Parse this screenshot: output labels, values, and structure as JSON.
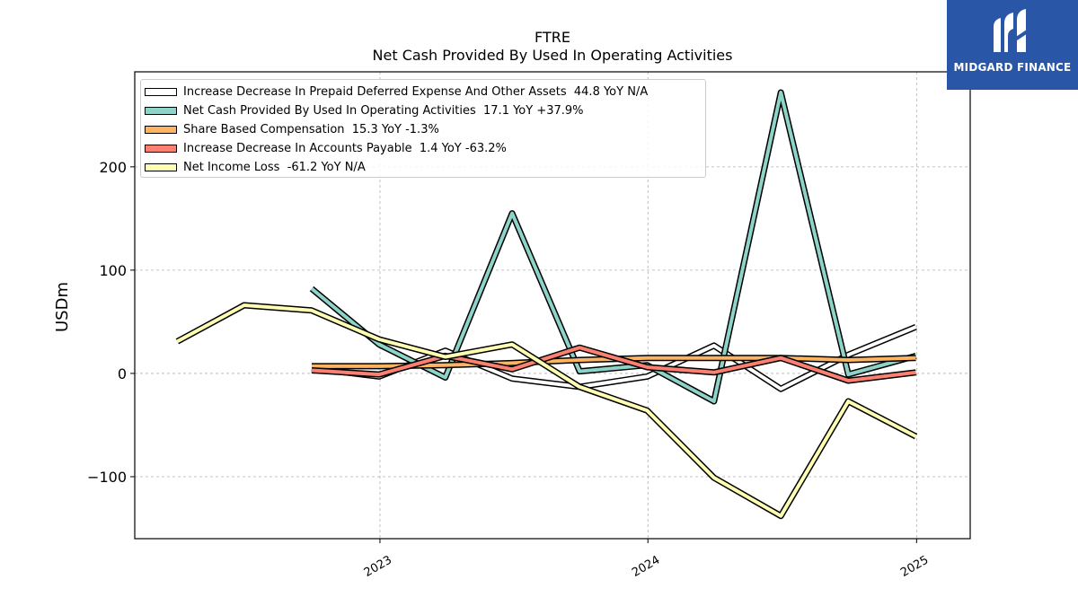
{
  "header": {
    "title": "FTRE",
    "subtitle": "Net Cash Provided By Used In Operating Activities"
  },
  "logo": {
    "text": "MIDGARD FINANCE",
    "background": "#2a56a8"
  },
  "chart_data": {
    "type": "line",
    "title": "FTRE",
    "subtitle": "Net Cash Provided By Used In Operating Activities",
    "xlabel": "",
    "ylabel": "USDm",
    "xlim": [
      "2022-02-01",
      "2025-03-15"
    ],
    "ylim": [
      -160,
      292
    ],
    "y_ticks": [
      -100,
      0,
      100,
      200
    ],
    "y_tick_labels": [
      "−100",
      "0",
      "100",
      "200"
    ],
    "x_ticks": [
      "2023-01-01",
      "2024-01-01",
      "2025-01-01"
    ],
    "x_tick_labels": [
      "2023",
      "2024",
      "2025"
    ],
    "grid": true,
    "legend_position": "top-left",
    "x": [
      "2022-03-31",
      "2022-06-30",
      "2022-09-30",
      "2022-12-31",
      "2023-03-31",
      "2023-06-30",
      "2023-09-30",
      "2023-12-31",
      "2024-03-31",
      "2024-06-30",
      "2024-09-30",
      "2024-12-31"
    ],
    "series": [
      {
        "name": "Increase Decrease In Prepaid Deferred Expense And Other Assets",
        "legend_label": "Increase Decrease In Prepaid Deferred Expense And Other Assets  44.8 YoY N/A",
        "color": "#ffffff",
        "values": [
          null,
          null,
          5,
          -3,
          22,
          -5,
          -13,
          -3,
          27,
          -15,
          18,
          45
        ]
      },
      {
        "name": "Net Cash Provided By Used In Operating Activities",
        "legend_label": "Net Cash Provided By Used In Operating Activities  17.1 YoY +37.9%",
        "color": "#8dd3c7",
        "values": [
          null,
          null,
          82,
          28,
          -4,
          155,
          2,
          8,
          -27,
          272,
          -1,
          17
        ]
      },
      {
        "name": "Share Based Compensation",
        "legend_label": "Share Based Compensation  15.3 YoY -1.3%",
        "color": "#fdb462",
        "values": [
          null,
          null,
          7,
          7,
          8,
          10,
          13,
          15,
          15,
          15,
          13,
          15
        ]
      },
      {
        "name": "Increase Decrease In Accounts Payable",
        "legend_label": "Increase Decrease In Accounts Payable  1.4 YoY -63.2%",
        "color": "#fb8072",
        "values": [
          null,
          null,
          3,
          -1,
          17,
          4,
          25,
          6,
          1,
          15,
          -7,
          1
        ]
      },
      {
        "name": "Net Income Loss",
        "legend_label": "Net Income Loss  -61.2 YoY N/A",
        "color": "#ffffb3",
        "values": [
          31,
          66,
          61,
          33,
          16,
          28,
          -13,
          -36,
          -101,
          -138,
          -27,
          -61
        ]
      }
    ]
  }
}
